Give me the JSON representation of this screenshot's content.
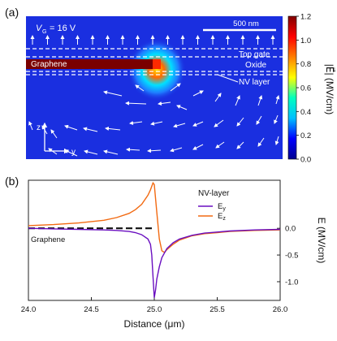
{
  "panel_a": {
    "label": "(a)",
    "gate_label_symbol": "V",
    "gate_label_subscript": "G",
    "gate_label_value": "= 16 V",
    "scalebar_label": "500 nm",
    "layers": {
      "top_gate": "Top gate",
      "oxide": "Oxide",
      "graphene": "Graphene",
      "nv_layer": "NV layer"
    },
    "axes_labels": {
      "z": "z",
      "y": "y"
    },
    "colorbar": {
      "label": "|E⃗| (MV/cm)",
      "ticks": [
        "0.0",
        "0.2",
        "0.4",
        "0.6",
        "0.8",
        "1.0",
        "1.2"
      ],
      "min": 0.0,
      "max": 1.2,
      "stops": [
        "#00008f",
        "#0000ff",
        "#00bfff",
        "#00ffbf",
        "#ffff00",
        "#ff7f00",
        "#ff0000",
        "#800000"
      ]
    },
    "field_colors": {
      "background": "#1a2fe0",
      "graphene": "#7a0000"
    }
  },
  "panel_b": {
    "label": "(b)",
    "legend_title": "NV-layer",
    "graphene_label": "Graphene",
    "colors": {
      "Ey": "#6a0fc0",
      "Ez": "#f26a12",
      "graphene": "#111111"
    }
  },
  "chart_data": {
    "type": "line",
    "xlabel": "Distance (μm)",
    "ylabel": "E (MV/cm)",
    "xlim": [
      24.0,
      26.0
    ],
    "ylim": [
      -1.35,
      0.9
    ],
    "xticks": [
      "24.0",
      "24.5",
      "25.0",
      "25.5",
      "26.0"
    ],
    "yticks": [
      "0.0",
      "-0.5",
      "-1.0"
    ],
    "legend": "top-right",
    "graphene_line": {
      "x": [
        24.0,
        25.0
      ],
      "y": [
        0.0,
        0.0
      ]
    },
    "series": [
      {
        "name": "E_y",
        "x": [
          24.0,
          24.2,
          24.4,
          24.6,
          24.7,
          24.8,
          24.85,
          24.9,
          24.95,
          24.97,
          24.98,
          24.99,
          25.0,
          25.01,
          25.02,
          25.04,
          25.06,
          25.1,
          25.15,
          25.2,
          25.3,
          25.4,
          25.5,
          25.6,
          25.8,
          26.0
        ],
        "y": [
          0.0,
          -0.01,
          -0.02,
          -0.03,
          -0.04,
          -0.06,
          -0.08,
          -0.12,
          -0.2,
          -0.3,
          -0.5,
          -0.9,
          -1.3,
          -1.15,
          -0.95,
          -0.72,
          -0.55,
          -0.38,
          -0.27,
          -0.2,
          -0.13,
          -0.09,
          -0.07,
          -0.05,
          -0.03,
          -0.02
        ]
      },
      {
        "name": "E_z",
        "x": [
          24.0,
          24.2,
          24.4,
          24.6,
          24.7,
          24.8,
          24.85,
          24.9,
          24.95,
          24.97,
          24.99,
          25.0,
          25.02,
          25.04,
          25.06,
          25.08,
          25.1,
          25.15,
          25.2,
          25.3,
          25.4,
          25.5,
          25.6,
          25.8,
          26.0
        ],
        "y": [
          0.05,
          0.07,
          0.1,
          0.15,
          0.2,
          0.28,
          0.35,
          0.45,
          0.62,
          0.72,
          0.85,
          0.82,
          0.3,
          -0.2,
          -0.42,
          -0.45,
          -0.4,
          -0.3,
          -0.22,
          -0.14,
          -0.1,
          -0.08,
          -0.06,
          -0.04,
          -0.03
        ]
      }
    ]
  }
}
